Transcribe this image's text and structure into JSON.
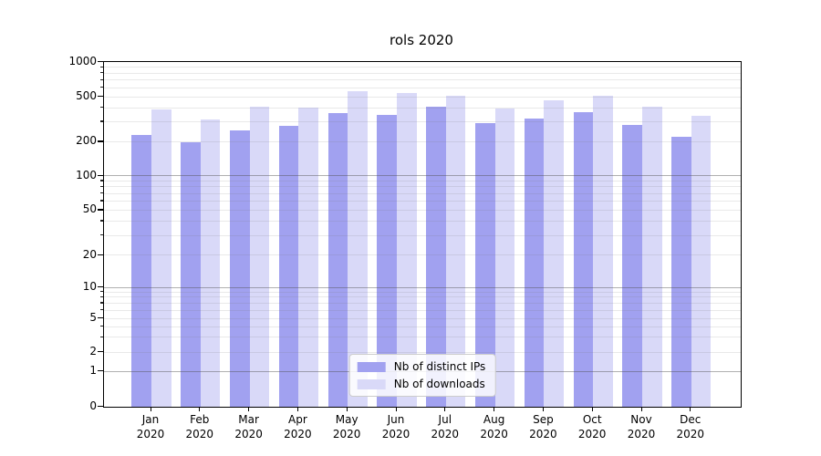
{
  "title": "rols 2020",
  "chart_data": {
    "type": "bar",
    "title": "rols 2020",
    "categories": [
      "Jan 2020",
      "Feb 2020",
      "Mar 2020",
      "Apr 2020",
      "May 2020",
      "Jun 2020",
      "Jul 2020",
      "Aug 2020",
      "Sep 2020",
      "Oct 2020",
      "Nov 2020",
      "Dec 2020"
    ],
    "series": [
      {
        "name": "Nb of distinct IPs",
        "color": "#a1a1f0",
        "values": [
          230,
          197,
          250,
          275,
          360,
          345,
          410,
          290,
          323,
          365,
          280,
          220
        ]
      },
      {
        "name": "Nb of downloads",
        "color": "#d9d9f8",
        "values": [
          385,
          315,
          405,
          400,
          555,
          535,
          510,
          390,
          468,
          505,
          410,
          337
        ]
      }
    ],
    "xlabel": "",
    "ylabel": "",
    "y_ticks": [
      0,
      1,
      2,
      5,
      10,
      20,
      50,
      100,
      200,
      500,
      1000
    ],
    "yscale": "log-with-zero",
    "ylim": [
      0,
      1000
    ],
    "grid": true,
    "legend_position": "lower center"
  },
  "colors": {
    "distinct_ips_bar": "#a1a1f0",
    "downloads_bar": "#d9d9f8",
    "major_gridline": "#b0b0b0",
    "minor_gridline": "#e8e8e8",
    "axis": "#000000",
    "legend_border": "#cccccc"
  }
}
